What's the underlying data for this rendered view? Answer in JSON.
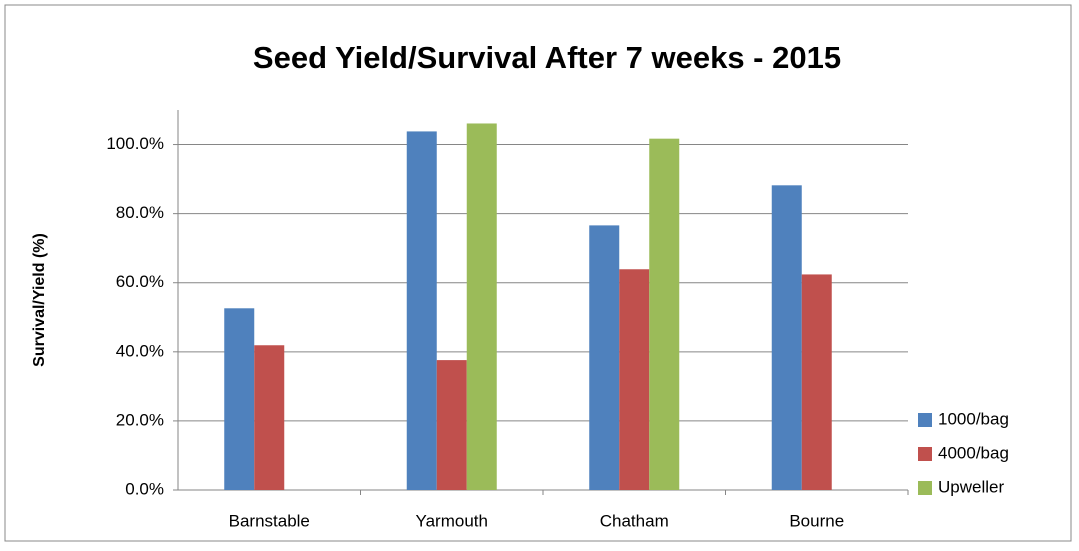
{
  "chart_data": {
    "type": "bar",
    "title": "Seed Yield/Survival After 7 weeks - 2015",
    "y_label": "Survival/Yield (%)",
    "categories": [
      "Barnstable",
      "Yarmouth",
      "Chatham",
      "Bourne"
    ],
    "series": [
      {
        "name": "1000/bag",
        "color": "#4f81bd",
        "values": [
          52.6,
          103.8,
          76.6,
          88.2
        ]
      },
      {
        "name": "4000/bag",
        "color": "#c0504d",
        "values": [
          41.9,
          37.6,
          63.9,
          62.4
        ]
      },
      {
        "name": "Upweller",
        "color": "#9bbb59",
        "values": [
          null,
          106.1,
          101.7,
          null
        ]
      }
    ],
    "ylim": [
      0,
      110
    ],
    "yticks": [
      {
        "value": 0,
        "label": "0.0%"
      },
      {
        "value": 20,
        "label": "20.0%"
      },
      {
        "value": 40,
        "label": "40.0%"
      },
      {
        "value": 60,
        "label": "60.0%"
      },
      {
        "value": 80,
        "label": "80.0%"
      },
      {
        "value": 100,
        "label": "100.0%"
      }
    ],
    "grid": true,
    "legend": "right"
  }
}
